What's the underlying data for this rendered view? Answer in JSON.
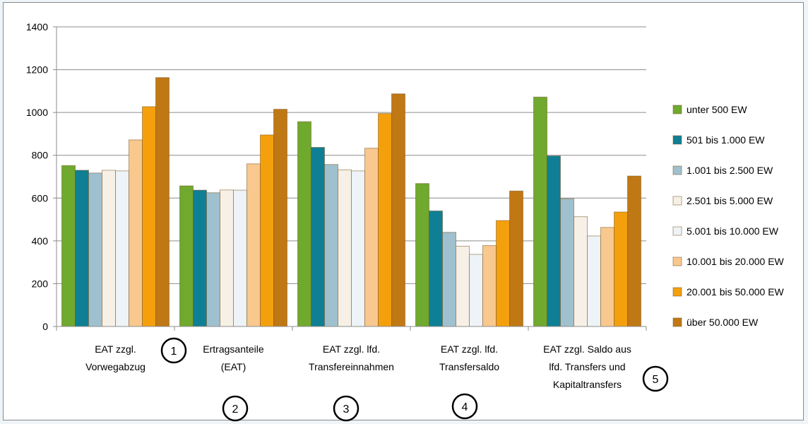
{
  "chart_data": {
    "type": "bar",
    "ylim": [
      0,
      1400
    ],
    "yticks": [
      0,
      200,
      400,
      600,
      800,
      1000,
      1200,
      1400
    ],
    "grid": true,
    "legend_position": "right",
    "categories": [
      [
        "EAT zzgl.",
        "Vorwegabzug"
      ],
      [
        "Ertragsanteile",
        "(EAT)"
      ],
      [
        "EAT zzgl. lfd.",
        "Transfereinnahmen"
      ],
      [
        "EAT zzgl. lfd.",
        "Transfersaldo"
      ],
      [
        "EAT zzgl. Saldo aus",
        "lfd. Transfers und",
        "Kapitaltransfers"
      ]
    ],
    "markers": [
      "1",
      "2",
      "3",
      "4",
      "5"
    ],
    "series": [
      {
        "name": "unter 500 EW",
        "color": "#6fa92e",
        "values": [
          752,
          657,
          957,
          668,
          1072
        ]
      },
      {
        "name": "501 bis 1.000 EW",
        "color": "#0e7f95",
        "values": [
          730,
          637,
          837,
          540,
          797
        ]
      },
      {
        "name": "1.001 bis 2.500 EW",
        "color": "#9fc0cf",
        "values": [
          717,
          625,
          757,
          440,
          597
        ]
      },
      {
        "name": "2.501 bis 5.000 EW",
        "color": "#f6f0e6",
        "values": [
          730,
          638,
          732,
          375,
          513
        ]
      },
      {
        "name": "5.001 bis 10.000 EW",
        "color": "#edf3f6",
        "values": [
          727,
          637,
          727,
          337,
          423
        ]
      },
      {
        "name": "10.001 bis 20.000 EW",
        "color": "#f8c88e",
        "values": [
          872,
          760,
          833,
          378,
          463
        ]
      },
      {
        "name": "20.001 bis 50.000 EW",
        "color": "#f4a00d",
        "values": [
          1027,
          895,
          995,
          495,
          535
        ]
      },
      {
        "name": "über 50.000 EW",
        "color": "#c07814",
        "values": [
          1163,
          1015,
          1087,
          633,
          703
        ]
      }
    ]
  }
}
